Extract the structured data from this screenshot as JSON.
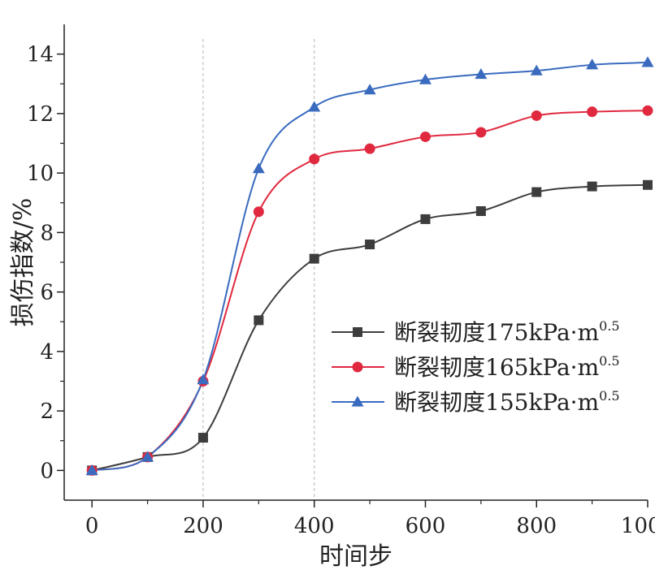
{
  "chart_data": {
    "type": "line",
    "xlabel": "时间步",
    "ylabel": "损伤指数/%",
    "xlim": [
      -50,
      1000
    ],
    "ylim": [
      -1,
      15
    ],
    "xticks": [
      0,
      200,
      400,
      600,
      800,
      1000
    ],
    "yticks": [
      0,
      2,
      4,
      6,
      8,
      10,
      12,
      14
    ],
    "reference_lines_x": [
      200,
      400
    ],
    "grid": false,
    "legend_position": "right-center",
    "x": [
      0,
      100,
      200,
      300,
      400,
      500,
      600,
      700,
      800,
      900,
      1000
    ],
    "series": [
      {
        "name": "断裂韧度175kPa·m",
        "name_sup": "0.5",
        "marker": "square",
        "color": "#3d3d3d",
        "values": [
          0,
          0.45,
          1.1,
          5.05,
          7.12,
          7.6,
          8.45,
          8.72,
          9.36,
          9.55,
          9.6
        ]
      },
      {
        "name": "断裂韧度165kPa·m",
        "name_sup": "0.5",
        "marker": "circle",
        "color": "#e0293f",
        "values": [
          0,
          0.45,
          3.0,
          8.7,
          10.47,
          10.82,
          11.22,
          11.37,
          11.93,
          12.06,
          12.1
        ]
      },
      {
        "name": "断裂韧度155kPa·m",
        "name_sup": "0.5",
        "marker": "triangle",
        "color": "#3a6bbf",
        "values": [
          0,
          0.45,
          3.05,
          10.15,
          12.22,
          12.8,
          13.14,
          13.32,
          13.44,
          13.64,
          13.72
        ]
      }
    ]
  }
}
